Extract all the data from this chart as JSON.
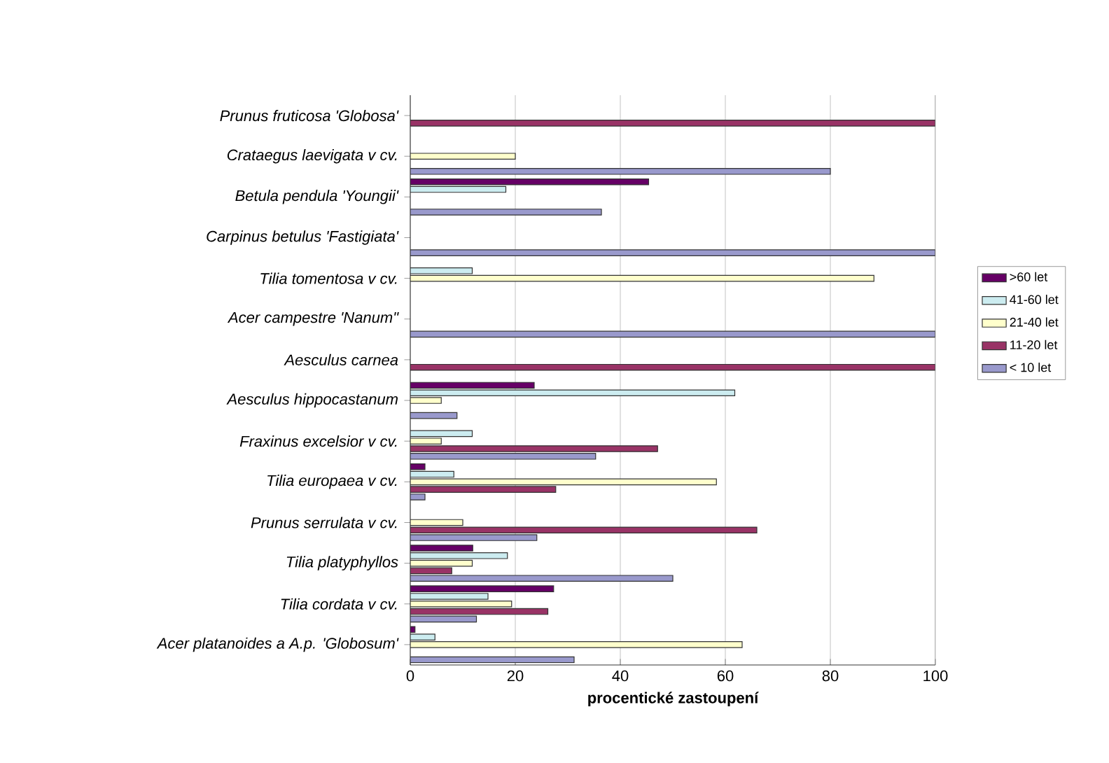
{
  "chart_data": {
    "type": "bar",
    "orientation": "horizontal",
    "xlabel": "procentické zastoupení",
    "categories": [
      "Prunus fruticosa 'Globosa'",
      "Crataegus laevigata v cv.",
      "Betula pendula 'Youngii'",
      "Carpinus betulus 'Fastigiata'",
      "Tilia tomentosa v cv.",
      "Acer campestre 'Nanum\"",
      "Aesculus carnea",
      "Aesculus hippocastanum",
      "Fraxinus excelsior v cv.",
      "Tilia europaea v cv.",
      "Prunus serrulata v cv.",
      "Tilia platyphyllos",
      "Tilia cordata v cv.",
      "Acer platanoides a A.p. 'Globosum'"
    ],
    "series": [
      {
        "name": "< 10 let",
        "color": "#9999cc",
        "values": [
          null,
          80,
          36.4,
          100,
          null,
          100,
          null,
          8.9,
          35.3,
          2.8,
          24.1,
          50,
          12.6,
          31.2
        ]
      },
      {
        "name": "11-20 let",
        "color": "#993366",
        "values": [
          100,
          null,
          null,
          null,
          null,
          null,
          100,
          null,
          47.1,
          27.7,
          66,
          7.9,
          26.2,
          null
        ]
      },
      {
        "name": "21-40 let",
        "color": "#ffffcc",
        "values": [
          null,
          20,
          null,
          null,
          88.3,
          null,
          null,
          5.9,
          5.9,
          58.3,
          10,
          11.8,
          19.3,
          63.2
        ]
      },
      {
        "name": "41-60 let",
        "color": "#ccecf0",
        "values": [
          null,
          null,
          18.2,
          null,
          11.8,
          null,
          null,
          61.8,
          11.8,
          8.3,
          null,
          18.5,
          14.8,
          4.7
        ]
      },
      {
        "name": ">60 let",
        "color": "#660066",
        "values": [
          null,
          null,
          45.4,
          null,
          null,
          null,
          null,
          23.6,
          null,
          2.8,
          null,
          11.9,
          27.3,
          0.9
        ]
      }
    ],
    "xlim": [
      0,
      100
    ],
    "xticks": [
      0,
      20,
      40,
      60,
      80,
      100
    ],
    "grid": "x",
    "legend": "right"
  }
}
